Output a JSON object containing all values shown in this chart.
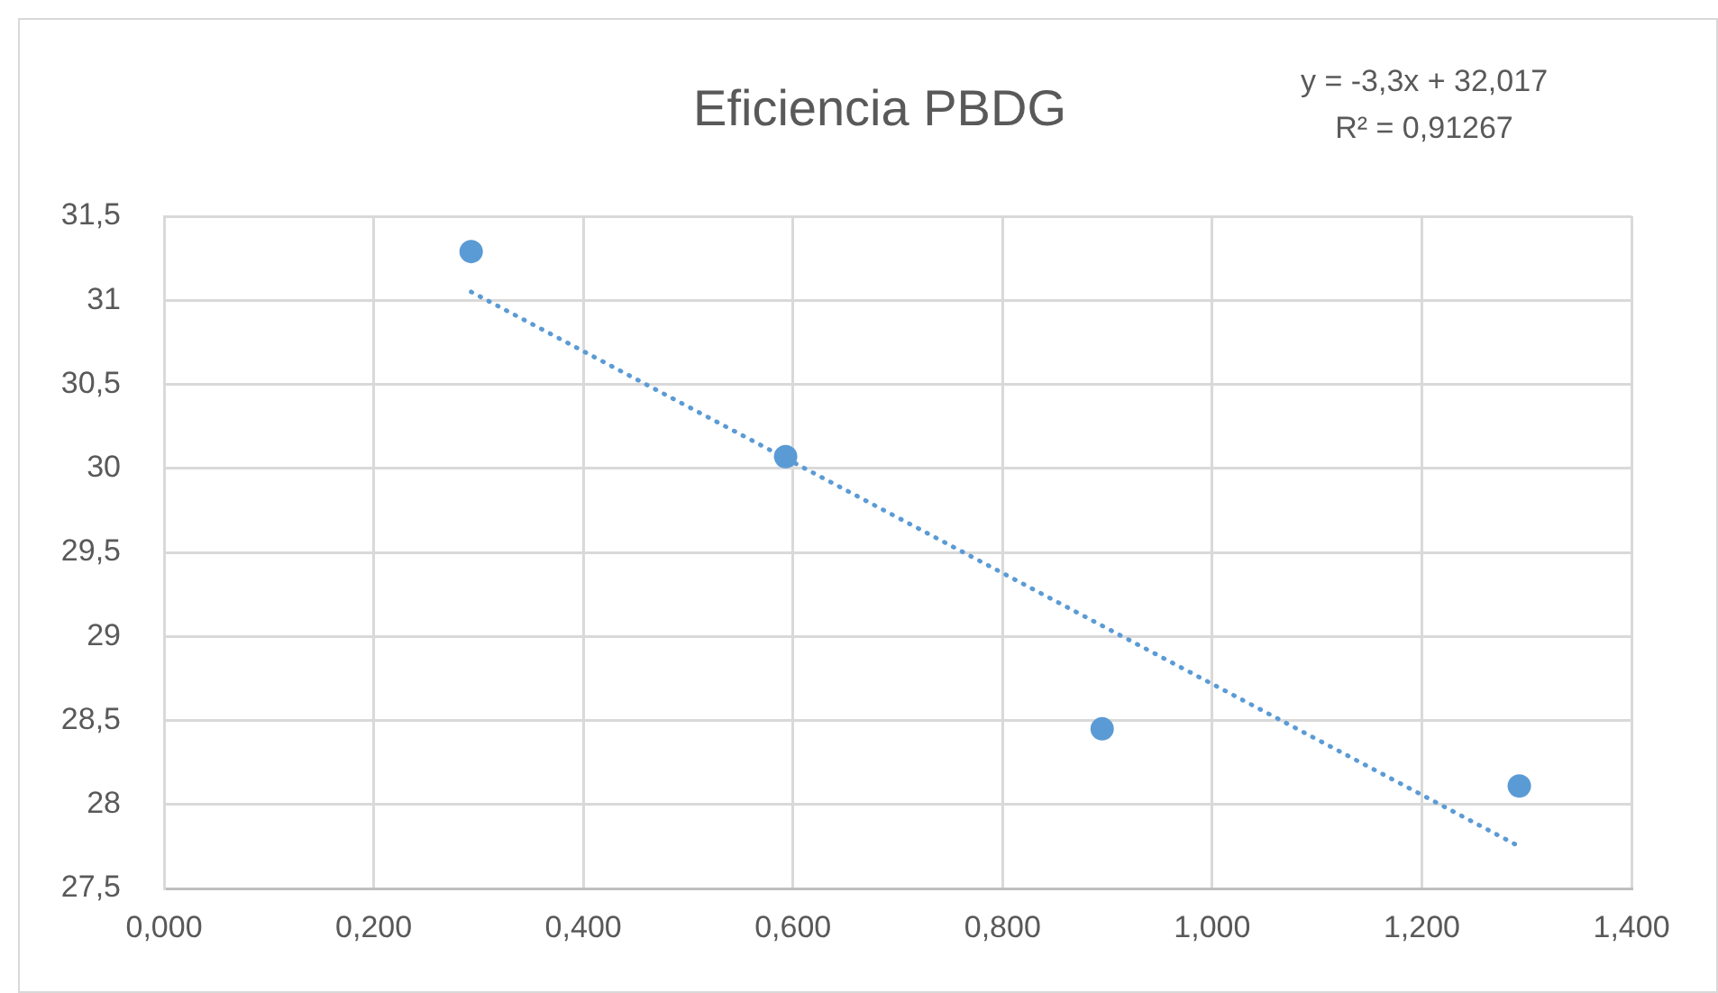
{
  "chart_data": {
    "type": "scatter",
    "title": "Eficiencia PBDG",
    "annotations": [
      "y = -3,3x + 32,017",
      "R² = 0,91267"
    ],
    "series": [
      {
        "color": "#5b9bd5",
        "marker": "circle",
        "x": [
          0.293,
          0.593,
          0.895,
          1.293
        ],
        "values": [
          31.29,
          30.07,
          28.45,
          28.11
        ]
      },
      {
        "type": "line",
        "color": "#5b9bd5",
        "marker": "none",
        "line_style": "dotted",
        "x": [
          0.293,
          1.293
        ],
        "values": [
          31.05,
          27.75
        ]
      }
    ],
    "xlim": [
      0,
      1.4
    ],
    "xticks": [
      {
        "value": 0,
        "label": "0,000"
      },
      {
        "value": 0.2,
        "label": "0,200"
      },
      {
        "value": 0.4,
        "label": "0,400"
      },
      {
        "value": 0.6,
        "label": "0,600"
      },
      {
        "value": 0.8,
        "label": "0,800"
      },
      {
        "value": 1,
        "label": "1,000"
      },
      {
        "value": 1.2,
        "label": "1,200"
      },
      {
        "value": 1.4,
        "label": "1,400"
      }
    ],
    "ylim": [
      27.5,
      31.5
    ],
    "yticks": [
      {
        "value": 27.5,
        "label": "27,5"
      },
      28,
      {
        "value": 28.5,
        "label": "28,5"
      },
      29,
      {
        "value": 29.5,
        "label": "29,5"
      },
      30,
      {
        "value": 30.5,
        "label": "30,5"
      },
      31,
      {
        "value": 31.5,
        "label": "31,5"
      }
    ],
    "grid": true,
    "legend": false
  }
}
